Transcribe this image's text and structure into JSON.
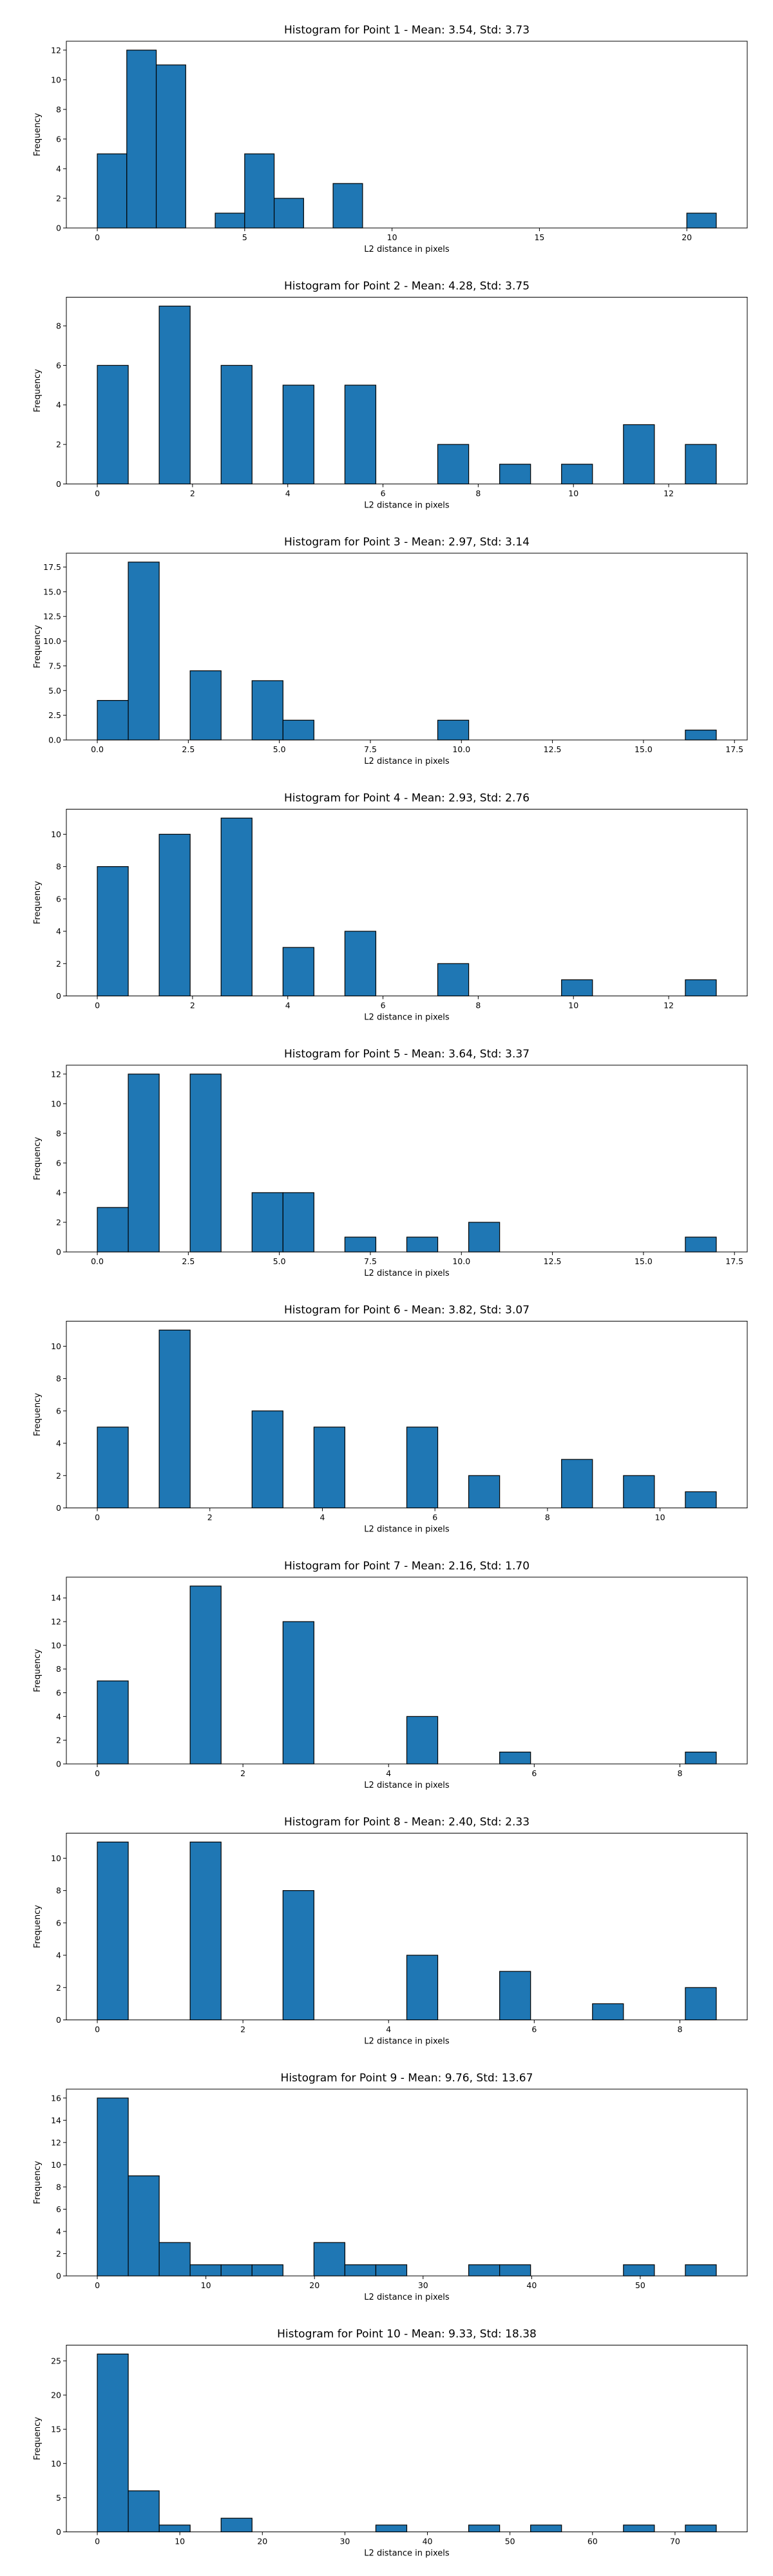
{
  "style": {
    "bar_color": "#1f77b4",
    "edge_color": "#000000"
  },
  "chart_data": [
    {
      "type": "bar",
      "title": "Histogram for Point 1 - Mean: 3.54, Std: 3.73",
      "xlabel": "L2 distance in pixels",
      "ylabel": "Frequency",
      "xlim": [
        -1.05,
        22.05
      ],
      "ylim": [
        0,
        12.6
      ],
      "xticks": [
        0,
        5,
        10,
        15,
        20
      ],
      "yticks": [
        0,
        2,
        4,
        6,
        8,
        10,
        12
      ],
      "bins": [
        [
          0,
          1,
          5
        ],
        [
          1,
          2,
          12
        ],
        [
          2,
          3,
          11
        ],
        [
          4,
          5,
          1
        ],
        [
          5,
          6,
          5
        ],
        [
          6,
          7,
          2
        ],
        [
          8,
          9,
          3
        ],
        [
          20,
          21,
          1
        ]
      ]
    },
    {
      "type": "bar",
      "title": "Histogram for Point 2 - Mean: 4.28, Std: 3.75",
      "xlabel": "L2 distance in pixels",
      "ylabel": "Frequency",
      "xlim": [
        -0.65,
        13.65
      ],
      "ylim": [
        0,
        9.45
      ],
      "xticks": [
        0,
        2,
        4,
        6,
        8,
        10,
        12
      ],
      "yticks": [
        0,
        2,
        4,
        6,
        8
      ],
      "bins": [
        [
          0,
          0.65,
          6
        ],
        [
          1.3,
          1.95,
          9
        ],
        [
          2.6,
          3.25,
          6
        ],
        [
          3.9,
          4.55,
          5
        ],
        [
          5.2,
          5.85,
          5
        ],
        [
          7.15,
          7.8,
          2
        ],
        [
          8.45,
          9.1,
          1
        ],
        [
          9.75,
          10.4,
          1
        ],
        [
          11.05,
          11.7,
          3
        ],
        [
          12.35,
          13.0,
          2
        ]
      ]
    },
    {
      "type": "bar",
      "title": "Histogram for Point 3 - Mean: 2.97, Std: 3.14",
      "xlabel": "L2 distance in pixels",
      "ylabel": "Frequency",
      "xlim": [
        -0.85,
        17.85
      ],
      "ylim": [
        0,
        18.9
      ],
      "xticks": [
        0,
        2.5,
        5,
        7.5,
        10,
        12.5,
        15,
        17.5
      ],
      "xtick_labels": [
        "0.0",
        "2.5",
        "5.0",
        "7.5",
        "10.0",
        "12.5",
        "15.0",
        "17.5"
      ],
      "yticks": [
        0,
        2.5,
        5,
        7.5,
        10,
        12.5,
        15,
        17.5
      ],
      "ytick_labels": [
        "0.0",
        "2.5",
        "5.0",
        "7.5",
        "10.0",
        "12.5",
        "15.0",
        "17.5"
      ],
      "bins": [
        [
          0,
          0.85,
          4
        ],
        [
          0.85,
          1.7,
          18
        ],
        [
          2.55,
          3.4,
          7
        ],
        [
          4.25,
          5.1,
          6
        ],
        [
          5.1,
          5.95,
          2
        ],
        [
          9.35,
          10.2,
          2
        ],
        [
          16.15,
          17.0,
          1
        ]
      ]
    },
    {
      "type": "bar",
      "title": "Histogram for Point 4 - Mean: 2.93, Std: 2.76",
      "xlabel": "L2 distance in pixels",
      "ylabel": "Frequency",
      "xlim": [
        -0.65,
        13.65
      ],
      "ylim": [
        0,
        11.55
      ],
      "xticks": [
        0,
        2,
        4,
        6,
        8,
        10,
        12
      ],
      "yticks": [
        0,
        2,
        4,
        6,
        8,
        10
      ],
      "bins": [
        [
          0,
          0.65,
          8
        ],
        [
          1.3,
          1.95,
          10
        ],
        [
          2.6,
          3.25,
          11
        ],
        [
          3.9,
          4.55,
          3
        ],
        [
          5.2,
          5.85,
          4
        ],
        [
          7.15,
          7.8,
          2
        ],
        [
          9.75,
          10.4,
          1
        ],
        [
          12.35,
          13.0,
          1
        ]
      ]
    },
    {
      "type": "bar",
      "title": "Histogram for Point 5 - Mean: 3.64, Std: 3.37",
      "xlabel": "L2 distance in pixels",
      "ylabel": "Frequency",
      "xlim": [
        -0.85,
        17.85
      ],
      "ylim": [
        0,
        12.6
      ],
      "xticks": [
        0,
        2.5,
        5,
        7.5,
        10,
        12.5,
        15,
        17.5
      ],
      "xtick_labels": [
        "0.0",
        "2.5",
        "5.0",
        "7.5",
        "10.0",
        "12.5",
        "15.0",
        "17.5"
      ],
      "yticks": [
        0,
        2,
        4,
        6,
        8,
        10,
        12
      ],
      "bins": [
        [
          0,
          0.85,
          3
        ],
        [
          0.85,
          1.7,
          12
        ],
        [
          2.55,
          3.4,
          12
        ],
        [
          4.25,
          5.1,
          4
        ],
        [
          5.1,
          5.95,
          4
        ],
        [
          6.8,
          7.65,
          1
        ],
        [
          8.5,
          9.35,
          1
        ],
        [
          10.2,
          11.05,
          2
        ],
        [
          16.15,
          17.0,
          1
        ]
      ]
    },
    {
      "type": "bar",
      "title": "Histogram for Point 6 - Mean: 3.82, Std: 3.07",
      "xlabel": "L2 distance in pixels",
      "ylabel": "Frequency",
      "xlim": [
        -0.55,
        11.55
      ],
      "ylim": [
        0,
        11.55
      ],
      "xticks": [
        0,
        2,
        4,
        6,
        8,
        10
      ],
      "yticks": [
        0,
        2,
        4,
        6,
        8,
        10
      ],
      "bins": [
        [
          0,
          0.55,
          5
        ],
        [
          1.1,
          1.65,
          11
        ],
        [
          2.75,
          3.3,
          6
        ],
        [
          3.85,
          4.4,
          5
        ],
        [
          5.5,
          6.05,
          5
        ],
        [
          6.6,
          7.15,
          2
        ],
        [
          8.25,
          8.8,
          3
        ],
        [
          9.35,
          9.9,
          2
        ],
        [
          10.45,
          11.0,
          1
        ]
      ]
    },
    {
      "type": "bar",
      "title": "Histogram for Point 7 - Mean: 2.16, Std: 1.70",
      "xlabel": "L2 distance in pixels",
      "ylabel": "Frequency",
      "xlim": [
        -0.425,
        8.925
      ],
      "ylim": [
        0,
        15.75
      ],
      "xticks": [
        0,
        2,
        4,
        6,
        8
      ],
      "yticks": [
        0,
        2,
        4,
        6,
        8,
        10,
        12,
        14
      ],
      "bins": [
        [
          0,
          0.425,
          7
        ],
        [
          1.275,
          1.7,
          15
        ],
        [
          2.55,
          2.975,
          12
        ],
        [
          4.25,
          4.675,
          4
        ],
        [
          5.525,
          5.95,
          1
        ],
        [
          8.075,
          8.5,
          1
        ]
      ]
    },
    {
      "type": "bar",
      "title": "Histogram for Point 8 - Mean: 2.40, Std: 2.33",
      "xlabel": "L2 distance in pixels",
      "ylabel": "Frequency",
      "xlim": [
        -0.425,
        8.925
      ],
      "ylim": [
        0,
        11.55
      ],
      "xticks": [
        0,
        2,
        4,
        6,
        8
      ],
      "yticks": [
        0,
        2,
        4,
        6,
        8,
        10
      ],
      "bins": [
        [
          0,
          0.425,
          11
        ],
        [
          1.275,
          1.7,
          11
        ],
        [
          2.55,
          2.975,
          8
        ],
        [
          4.25,
          4.675,
          4
        ],
        [
          5.525,
          5.95,
          3
        ],
        [
          6.8,
          7.225,
          1
        ],
        [
          8.075,
          8.5,
          2
        ]
      ]
    },
    {
      "type": "bar",
      "title": "Histogram for Point 9 - Mean: 9.76, Std: 13.67",
      "xlabel": "L2 distance in pixels",
      "ylabel": "Frequency",
      "xlim": [
        -2.85,
        59.85
      ],
      "ylim": [
        0,
        16.8
      ],
      "xticks": [
        0,
        10,
        20,
        30,
        40,
        50
      ],
      "yticks": [
        0,
        2,
        4,
        6,
        8,
        10,
        12,
        14,
        16
      ],
      "bins": [
        [
          0,
          2.85,
          16
        ],
        [
          2.85,
          5.7,
          9
        ],
        [
          5.7,
          8.55,
          3
        ],
        [
          8.55,
          11.4,
          1
        ],
        [
          11.4,
          14.25,
          1
        ],
        [
          14.25,
          17.1,
          1
        ],
        [
          19.95,
          22.8,
          3
        ],
        [
          22.8,
          25.65,
          1
        ],
        [
          25.65,
          28.5,
          1
        ],
        [
          34.2,
          37.05,
          1
        ],
        [
          37.05,
          39.9,
          1
        ],
        [
          48.45,
          51.3,
          1
        ],
        [
          54.15,
          57.0,
          1
        ]
      ]
    },
    {
      "type": "bar",
      "title": "Histogram for Point 10 - Mean: 9.33, Std: 18.38",
      "xlabel": "L2 distance in pixels",
      "ylabel": "Frequency",
      "xlim": [
        -3.75,
        78.75
      ],
      "ylim": [
        0,
        27.3
      ],
      "xticks": [
        0,
        10,
        20,
        30,
        40,
        50,
        60,
        70
      ],
      "yticks": [
        0,
        5,
        10,
        15,
        20,
        25
      ],
      "bins": [
        [
          0,
          3.75,
          26
        ],
        [
          3.75,
          7.5,
          6
        ],
        [
          7.5,
          11.25,
          1
        ],
        [
          15,
          18.75,
          2
        ],
        [
          33.75,
          37.5,
          1
        ],
        [
          45,
          48.75,
          1
        ],
        [
          52.5,
          56.25,
          1
        ],
        [
          63.75,
          67.5,
          1
        ],
        [
          71.25,
          75.0,
          1
        ]
      ]
    }
  ]
}
